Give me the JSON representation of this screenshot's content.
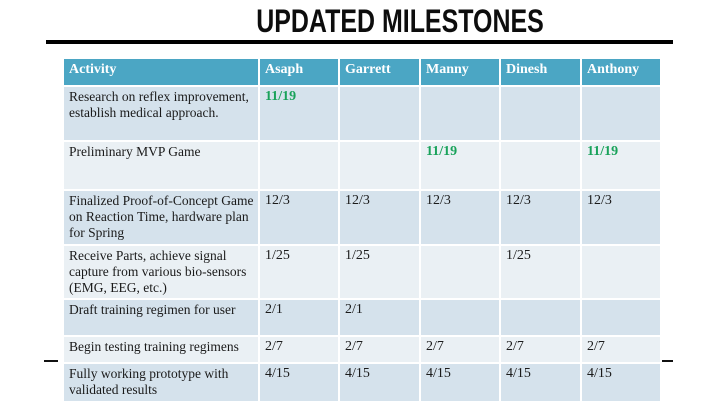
{
  "slide": {
    "title": "UPDATED MILESTONES"
  },
  "colors": {
    "header_bg": "#4BA6C4",
    "row_odd_bg": "#D5E2EC",
    "row_even_bg": "#EAF0F4",
    "date_green": "#19A25A",
    "title_color": "#0d0d0d"
  },
  "table": {
    "columns": [
      "Activity",
      "Asaph",
      "Garrett",
      "Manny",
      "Dinesh",
      "Anthony"
    ],
    "rows": [
      {
        "activity": "Research on reflex improvement, establish medical approach.",
        "dates": [
          "11/19",
          "",
          "",
          "",
          ""
        ],
        "date_color": "green"
      },
      {
        "activity": "Preliminary MVP Game",
        "dates": [
          "",
          "",
          "11/19",
          "",
          "11/19"
        ],
        "date_color": "green"
      },
      {
        "activity": "Finalized Proof-of-Concept Game on Reaction Time, hardware plan for Spring",
        "dates": [
          "12/3",
          "12/3",
          "12/3",
          "12/3",
          "12/3"
        ],
        "date_color": "default"
      },
      {
        "activity": "Receive Parts, achieve signal capture from various bio-sensors (EMG, EEG, etc.)",
        "dates": [
          "1/25",
          "1/25",
          "",
          "1/25",
          ""
        ],
        "date_color": "default"
      },
      {
        "activity": "Draft training regimen for user",
        "dates": [
          "2/1",
          "2/1",
          "",
          "",
          ""
        ],
        "date_color": "default"
      },
      {
        "activity": "Begin testing training regimens",
        "dates": [
          "2/7",
          "2/7",
          "2/7",
          "2/7",
          "2/7"
        ],
        "date_color": "default"
      },
      {
        "activity": "Fully working prototype with validated results",
        "dates": [
          "4/15",
          "4/15",
          "4/15",
          "4/15",
          "4/15"
        ],
        "date_color": "default"
      }
    ]
  }
}
